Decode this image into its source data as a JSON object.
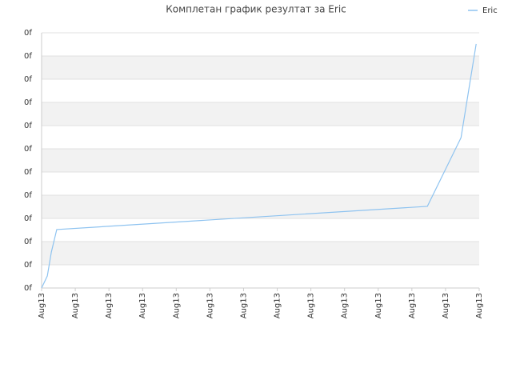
{
  "chart_data": {
    "type": "line",
    "title": "Комплетан график резултат за Eric",
    "x": [
      0,
      0.17,
      0.29,
      0.45,
      11.46,
      12.46,
      12.91
    ],
    "series": [
      {
        "name": "Eric",
        "color": "#8ec3f0",
        "values": [
          0,
          0.52,
          1.55,
          2.52,
          3.52,
          6.48,
          10.52
        ]
      }
    ],
    "xlim": [
      0,
      13
    ],
    "xticks": [
      {
        "value": 0,
        "label": "Aug13"
      },
      {
        "value": 1,
        "label": "Aug13"
      },
      {
        "value": 2,
        "label": "Aug13"
      },
      {
        "value": 3,
        "label": "Aug13"
      },
      {
        "value": 4,
        "label": "Aug13"
      },
      {
        "value": 5,
        "label": "Aug13"
      },
      {
        "value": 6,
        "label": "Aug13"
      },
      {
        "value": 7,
        "label": "Aug13"
      },
      {
        "value": 8,
        "label": "Aug13"
      },
      {
        "value": 9,
        "label": "Aug13"
      },
      {
        "value": 10,
        "label": "Aug13"
      },
      {
        "value": 11,
        "label": "Aug13"
      },
      {
        "value": 12,
        "label": "Aug13"
      },
      {
        "value": 13,
        "label": "Aug13"
      }
    ],
    "ylim": [
      0,
      11
    ],
    "yticks": [
      {
        "value": 0,
        "label": "0f"
      },
      {
        "value": 1,
        "label": "0f"
      },
      {
        "value": 2,
        "label": "0f"
      },
      {
        "value": 3,
        "label": "0f"
      },
      {
        "value": 4,
        "label": "0f"
      },
      {
        "value": 5,
        "label": "0f"
      },
      {
        "value": 6,
        "label": "0f"
      },
      {
        "value": 7,
        "label": "0f"
      },
      {
        "value": 8,
        "label": "0f"
      },
      {
        "value": 9,
        "label": "0f"
      },
      {
        "value": 10,
        "label": "0f"
      },
      {
        "value": 11,
        "label": "0f"
      }
    ],
    "grid": true,
    "legend": "top-right"
  }
}
